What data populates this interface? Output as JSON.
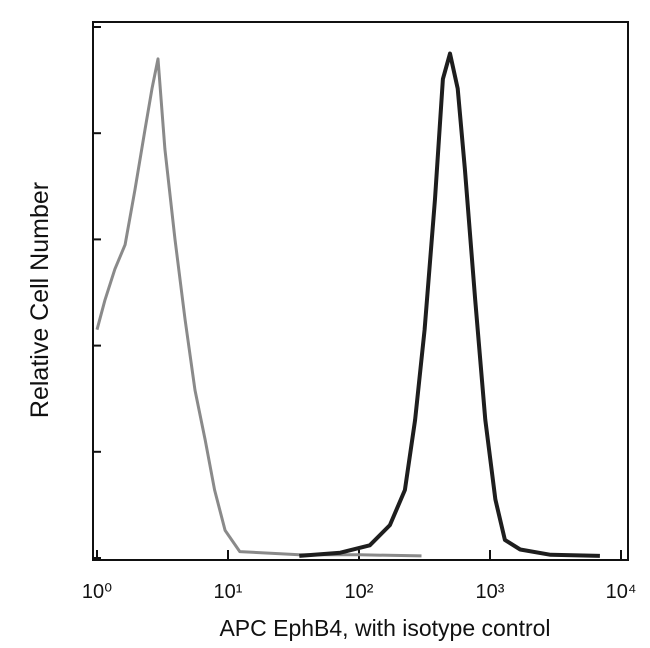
{
  "chart_data": {
    "type": "line",
    "xlabel": "APC EphB4, with isotype control",
    "ylabel": "Relative Cell Number",
    "xscale": "log",
    "xlim": [
      1,
      10000
    ],
    "xticks": [
      {
        "value": 1,
        "label": "10⁰"
      },
      {
        "value": 10,
        "label": "10¹"
      },
      {
        "value": 100,
        "label": "10²"
      },
      {
        "value": 1000,
        "label": "10³"
      },
      {
        "value": 10000,
        "label": "10⁴"
      }
    ],
    "ylim": [
      0,
      5
    ],
    "yticks": [
      0,
      1,
      2,
      3,
      4,
      5
    ],
    "series": [
      {
        "color": "#8a8a8a",
        "x": [
          1.0,
          1.15,
          1.37,
          1.64,
          1.95,
          2.33,
          2.63,
          2.92,
          3.3,
          3.94,
          4.7,
          5.6,
          6.7,
          7.9,
          9.5,
          12.3,
          35,
          101,
          300
        ],
        "values": [
          2.15,
          2.43,
          2.72,
          2.95,
          3.47,
          4.04,
          4.42,
          4.7,
          3.85,
          3.0,
          2.25,
          1.58,
          1.11,
          0.64,
          0.26,
          0.06,
          0.03,
          0.03,
          0.02
        ]
      },
      {
        "color": "#1e1e1e",
        "x": [
          35,
          72,
          121,
          172,
          224,
          268,
          317,
          380,
          437,
          495,
          567,
          643,
          771,
          920,
          1100,
          1300,
          1700,
          2900,
          6900
        ],
        "values": [
          0.02,
          0.05,
          0.12,
          0.31,
          0.64,
          1.3,
          2.15,
          3.38,
          4.51,
          4.75,
          4.42,
          3.66,
          2.43,
          1.3,
          0.55,
          0.17,
          0.08,
          0.03,
          0.02
        ]
      }
    ]
  }
}
